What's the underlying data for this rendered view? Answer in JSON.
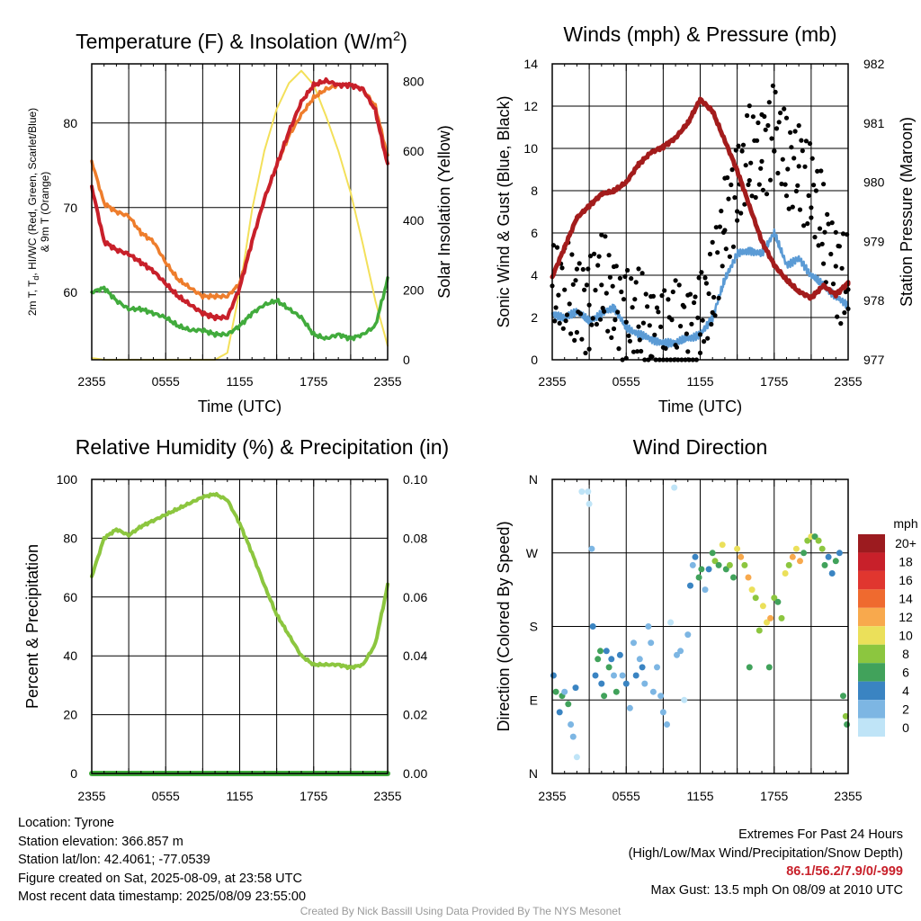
{
  "chart_data": [
    {
      "id": "temperature",
      "type": "line",
      "title": "Temperature (F) & Insolation (W/m",
      "title_sup": "2",
      "title_tail": ")",
      "ylabel_left_lines": [
        "2m T, T",
        "d",
        ", HI/WC (Red, Green, Scarlet/Blue)",
        "& 9m T (Orange)"
      ],
      "ylabel_right": "Solar Insolation (Yellow)",
      "xlabel": "Time (UTC)",
      "x_ticks": [
        "2355",
        "0555",
        "1155",
        "1755",
        "2355"
      ],
      "x_range_hours": [
        0,
        24
      ],
      "ylim_left": [
        52,
        87
      ],
      "yticks_left": [
        60,
        70,
        80
      ],
      "ylim_right": [
        0,
        850
      ],
      "yticks_right": [
        0,
        200,
        400,
        600,
        800
      ],
      "grid": true,
      "series": [
        {
          "color": "#ee7d2c",
          "width": 3.5,
          "x": [
            0,
            1,
            2,
            3,
            4,
            5,
            6,
            7,
            8,
            9,
            10,
            11,
            12,
            13,
            14,
            15,
            16,
            17,
            18,
            19,
            20,
            21,
            22,
            23,
            24
          ],
          "y": [
            75.5,
            70.5,
            69.5,
            69,
            67,
            66,
            63.5,
            61.5,
            60.5,
            59.5,
            59.5,
            59.5,
            61,
            66,
            71,
            75,
            78.5,
            81,
            83,
            84,
            84.5,
            84.5,
            84,
            82,
            76
          ]
        },
        {
          "color": "#c8202a",
          "width": 4,
          "x": [
            0,
            1,
            2,
            3,
            4,
            5,
            6,
            7,
            8,
            9,
            10,
            11,
            12,
            13,
            14,
            15,
            16,
            17,
            18,
            19,
            20,
            21,
            22,
            23,
            24
          ],
          "y": [
            72.5,
            66,
            65,
            64.5,
            63.5,
            62.5,
            61,
            59.5,
            58.5,
            57.5,
            57,
            57,
            60.5,
            66,
            71,
            75,
            79,
            82.5,
            84.5,
            85,
            84.5,
            84.5,
            84,
            81.5,
            75
          ]
        },
        {
          "color": "#41ab3c",
          "width": 3.5,
          "x": [
            0,
            1,
            2,
            3,
            4,
            5,
            6,
            7,
            8,
            9,
            10,
            11,
            12,
            13,
            14,
            15,
            16,
            17,
            18,
            19,
            20,
            21,
            22,
            23,
            24
          ],
          "y": [
            60,
            60.5,
            59,
            58,
            58,
            57.5,
            57,
            56,
            55.5,
            55.5,
            55,
            55,
            56,
            57.5,
            58.5,
            59,
            58,
            57,
            55,
            54.5,
            55,
            54.5,
            55,
            56,
            61.5
          ]
        }
      ],
      "insolation": {
        "color": "#f3e05a",
        "x": [
          0,
          1,
          2,
          3,
          4,
          5,
          6,
          7,
          8,
          9,
          10,
          11,
          12,
          13,
          14,
          15,
          16,
          17,
          18,
          19,
          20,
          21,
          22,
          23,
          24
        ],
        "y": [
          5,
          0,
          0,
          0,
          0,
          0,
          0,
          0,
          0,
          0,
          0,
          20,
          200,
          430,
          600,
          720,
          795,
          830,
          790,
          700,
          600,
          480,
          330,
          170,
          40
        ]
      }
    },
    {
      "id": "winds",
      "type": "line",
      "title": "Winds (mph) & Pressure (mb)",
      "ylabel_left": "Sonic Wind & Gust (Blue, Black)",
      "ylabel_right": "Station Pressure (Maroon)",
      "xlabel": "Time (UTC)",
      "x_ticks": [
        "2355",
        "0555",
        "1155",
        "1755",
        "2355"
      ],
      "x_range_hours": [
        0,
        24
      ],
      "ylim_left": [
        0,
        14
      ],
      "yticks_left": [
        0,
        2,
        4,
        6,
        8,
        10,
        12,
        14
      ],
      "ylim_right": [
        977,
        982
      ],
      "yticks_right": [
        977,
        978,
        979,
        980,
        981,
        982
      ],
      "grid": true,
      "wind_color": "#5b9bd5",
      "wind": {
        "x": [
          0,
          1,
          2,
          3,
          4,
          5,
          6,
          7,
          8,
          9,
          10,
          11,
          12,
          13,
          14,
          15,
          16,
          17,
          18,
          19,
          20,
          21,
          22,
          23,
          24
        ],
        "y": [
          2.2,
          2,
          2.3,
          1.8,
          2.2,
          2.5,
          1.5,
          1.2,
          1,
          0.8,
          0.8,
          1,
          1.2,
          2,
          3.8,
          5,
          5.2,
          5,
          6,
          4.5,
          4.8,
          4,
          3.5,
          3,
          2.6
        ]
      },
      "gust_color": "#000000",
      "gust": {
        "x": [
          0,
          1,
          2,
          3,
          4,
          5,
          6,
          7,
          8,
          9,
          10,
          11,
          12,
          13,
          14,
          15,
          16,
          17,
          18,
          19,
          20,
          21,
          22,
          23,
          24
        ],
        "y": [
          3.5,
          3,
          3,
          2.8,
          3.5,
          3,
          2.2,
          1.8,
          1.5,
          1.2,
          1.2,
          1.5,
          2,
          3,
          7,
          8,
          9.5,
          10,
          11,
          9,
          9.5,
          8,
          6,
          4.5,
          3.8
        ]
      },
      "pressure_color": "#a31c1c",
      "pressure": {
        "x": [
          0,
          1,
          2,
          3,
          4,
          5,
          6,
          7,
          8,
          9,
          10,
          11,
          12,
          13,
          14,
          15,
          16,
          17,
          18,
          19,
          20,
          21,
          22,
          23,
          24
        ],
        "y": [
          978.4,
          978.9,
          979.4,
          979.6,
          979.8,
          979.85,
          980,
          980.3,
          980.5,
          980.6,
          980.75,
          981,
          981.4,
          981.2,
          980.7,
          980.2,
          979.6,
          979,
          978.6,
          978.35,
          978.15,
          978.05,
          978.25,
          978.1,
          978.3
        ]
      }
    },
    {
      "id": "humidity",
      "type": "line",
      "title": "Relative Humidity (%) & Precipitation (in)",
      "ylabel_left": "Percent & Precipitation",
      "x_ticks": [
        "2355",
        "0555",
        "1155",
        "1755",
        "2355"
      ],
      "x_range_hours": [
        0,
        24
      ],
      "ylim_left": [
        0,
        100
      ],
      "yticks_left": [
        0,
        20,
        40,
        60,
        80,
        100
      ],
      "ylim_right": [
        0,
        0.1
      ],
      "yticks_right": [
        "0.00",
        "0.02",
        "0.04",
        "0.06",
        "0.08",
        "0.10"
      ],
      "grid": true,
      "rh_color": "#8cc63f",
      "rh": {
        "x": [
          0,
          1,
          2,
          3,
          4,
          5,
          6,
          7,
          8,
          9,
          10,
          11,
          12,
          13,
          14,
          15,
          16,
          17,
          18,
          19,
          20,
          21,
          22,
          23,
          24
        ],
        "y": [
          67,
          80,
          83,
          81,
          84,
          86,
          88,
          90,
          92,
          94,
          95,
          93,
          85,
          75,
          64,
          54,
          47,
          40,
          37,
          37,
          37,
          36,
          37,
          44,
          64
        ]
      },
      "precip_color": "#41ab3c",
      "precip": {
        "x": [
          0,
          24
        ],
        "y": [
          0,
          0
        ]
      }
    },
    {
      "id": "direction",
      "type": "scatter",
      "title": "Wind Direction",
      "ylabel_left": "Direction (Colored By Speed)",
      "x_ticks": [
        "2355",
        "0555",
        "1155",
        "1755",
        "2355"
      ],
      "x_range_hours": [
        0,
        24
      ],
      "y_ticks": [
        "N",
        "E",
        "S",
        "W",
        "N"
      ],
      "ylim_deg": [
        0,
        360
      ],
      "grid": true,
      "colorbar_title": "mph",
      "colorbar_labels": [
        "20+",
        "18",
        "16",
        "14",
        "12",
        "10",
        "8",
        "6",
        "4",
        "2",
        "0"
      ],
      "colorbar_colors": [
        "#9c1b1f",
        "#c8202a",
        "#e0362f",
        "#ef6a2f",
        "#f8a94d",
        "#ebe05a",
        "#8cc63f",
        "#41a25b",
        "#3a84c2",
        "#7db6e3",
        "#bfe4f7"
      ],
      "points": [
        [
          0.1,
          120,
          2
        ],
        [
          0.3,
          100,
          3
        ],
        [
          0.6,
          75,
          2
        ],
        [
          0.8,
          95,
          3
        ],
        [
          1.0,
          100,
          1
        ],
        [
          1.3,
          85,
          3
        ],
        [
          1.5,
          60,
          1
        ],
        [
          1.7,
          45,
          1
        ],
        [
          1.9,
          105,
          2
        ],
        [
          2.0,
          20,
          0
        ],
        [
          2.4,
          345,
          0
        ],
        [
          2.9,
          345,
          0
        ],
        [
          3.0,
          330,
          0
        ],
        [
          3.2,
          275,
          1
        ],
        [
          3.3,
          180,
          2
        ],
        [
          3.5,
          120,
          2
        ],
        [
          3.7,
          140,
          3
        ],
        [
          3.9,
          150,
          3
        ],
        [
          4.0,
          110,
          2
        ],
        [
          4.2,
          95,
          3
        ],
        [
          4.4,
          150,
          2
        ],
        [
          4.6,
          130,
          3
        ],
        [
          4.8,
          140,
          2
        ],
        [
          5.0,
          120,
          1
        ],
        [
          5.2,
          100,
          3
        ],
        [
          5.5,
          145,
          2
        ],
        [
          5.7,
          120,
          1
        ],
        [
          6.0,
          110,
          2
        ],
        [
          6.3,
          80,
          1
        ],
        [
          6.6,
          160,
          1
        ],
        [
          6.8,
          120,
          2
        ],
        [
          7.1,
          140,
          1
        ],
        [
          7.3,
          130,
          2
        ],
        [
          7.5,
          110,
          1
        ],
        [
          7.8,
          180,
          1
        ],
        [
          8.0,
          160,
          1
        ],
        [
          8.2,
          100,
          1
        ],
        [
          8.5,
          130,
          1
        ],
        [
          8.8,
          95,
          1
        ],
        [
          9.0,
          75,
          1
        ],
        [
          9.3,
          60,
          1
        ],
        [
          9.6,
          185,
          0
        ],
        [
          9.9,
          350,
          0
        ],
        [
          10.1,
          145,
          1
        ],
        [
          10.4,
          150,
          1
        ],
        [
          10.7,
          90,
          0
        ],
        [
          11.0,
          170,
          1
        ],
        [
          11.2,
          230,
          2
        ],
        [
          11.4,
          255,
          1
        ],
        [
          11.6,
          265,
          2
        ],
        [
          11.9,
          240,
          3
        ],
        [
          12.1,
          250,
          3
        ],
        [
          12.4,
          225,
          1
        ],
        [
          12.7,
          250,
          2
        ],
        [
          13.0,
          270,
          3
        ],
        [
          13.2,
          260,
          4
        ],
        [
          13.5,
          255,
          3
        ],
        [
          13.8,
          280,
          5
        ],
        [
          14.1,
          250,
          3
        ],
        [
          14.4,
          255,
          4
        ],
        [
          14.7,
          240,
          3
        ],
        [
          15.0,
          275,
          5
        ],
        [
          15.3,
          265,
          6
        ],
        [
          15.6,
          255,
          4
        ],
        [
          15.9,
          240,
          6
        ],
        [
          16.2,
          225,
          5
        ],
        [
          16.5,
          215,
          4
        ],
        [
          16.8,
          175,
          4
        ],
        [
          17.1,
          205,
          5
        ],
        [
          17.4,
          185,
          5
        ],
        [
          17.7,
          190,
          6
        ],
        [
          18.0,
          215,
          4
        ],
        [
          18.3,
          210,
          3
        ],
        [
          18.6,
          190,
          4
        ],
        [
          18.9,
          245,
          5
        ],
        [
          19.2,
          255,
          4
        ],
        [
          19.5,
          265,
          6
        ],
        [
          19.8,
          275,
          5
        ],
        [
          20.1,
          260,
          6
        ],
        [
          20.4,
          270,
          3
        ],
        [
          20.7,
          285,
          4
        ],
        [
          21.0,
          290,
          5
        ],
        [
          21.3,
          290,
          3
        ],
        [
          21.6,
          285,
          4
        ],
        [
          21.9,
          275,
          4
        ],
        [
          22.1,
          255,
          3
        ],
        [
          22.4,
          265,
          2
        ],
        [
          22.7,
          245,
          2
        ],
        [
          23.0,
          260,
          3
        ],
        [
          23.3,
          270,
          2
        ],
        [
          23.6,
          95,
          3
        ],
        [
          23.8,
          70,
          4
        ],
        [
          23.9,
          60,
          3
        ],
        [
          16.0,
          130,
          3
        ],
        [
          17.6,
          130,
          3
        ]
      ]
    }
  ],
  "info_left": [
    "Location: Tyrone",
    "Station elevation: 366.857 m",
    "Station lat/lon: 42.4061; -77.0539",
    "Figure created on Sat, 2025-08-09, at 23:58 UTC",
    "Most recent data timestamp: 2025/08/09 23:55:00"
  ],
  "extremes": {
    "title": "Extremes For Past 24 Hours",
    "subtitle": "(High/Low/Max Wind/Precipitation/Snow Depth)",
    "values": "86.1/56.2/7.9/0/-999",
    "gust": "Max Gust: 13.5 mph On 08/09 at 2010 UTC"
  },
  "credit": "Created By Nick Bassill Using Data Provided By The NYS Mesonet"
}
